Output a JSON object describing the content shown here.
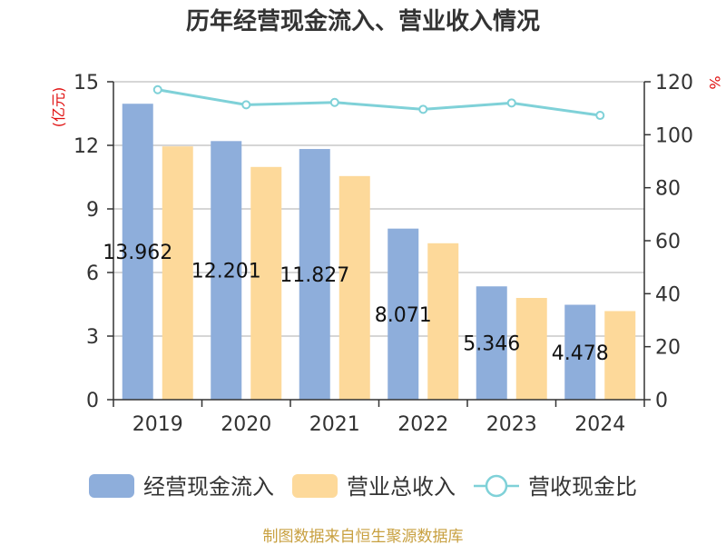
{
  "chart_data": {
    "type": "bar",
    "title": "历年经营现金流入、营业收入情况",
    "categories": [
      "2019",
      "2020",
      "2021",
      "2022",
      "2023",
      "2024"
    ],
    "series": [
      {
        "name": "经营现金流入",
        "kind": "bar",
        "axis": "left",
        "color": "#8eaedb",
        "values": [
          13.962,
          12.201,
          11.827,
          8.071,
          5.346,
          4.478
        ],
        "labels": [
          "13.962",
          "12.201",
          "11.827",
          "8.071",
          "5.346",
          "4.478"
        ]
      },
      {
        "name": "营业总收入",
        "kind": "bar",
        "axis": "left",
        "color": "#fdd99a",
        "values": [
          11.95,
          10.98,
          10.55,
          7.38,
          4.8,
          4.18
        ]
      },
      {
        "name": "营收现金比",
        "kind": "line",
        "axis": "right",
        "color": "#7fd1d8",
        "values": [
          117.0,
          111.3,
          112.2,
          109.6,
          112.0,
          107.3
        ]
      }
    ],
    "left_axis": {
      "label": "(亿元)",
      "ylim": [
        0,
        15
      ],
      "ticks": [
        "0",
        "3",
        "6",
        "9",
        "12",
        "15"
      ]
    },
    "right_axis": {
      "label": "%",
      "ylim": [
        0,
        120
      ],
      "ticks": [
        "0",
        "20",
        "40",
        "60",
        "80",
        "100",
        "120"
      ]
    },
    "grid": true,
    "legend_position": "bottom"
  },
  "source": "制图数据来自恒生聚源数据库"
}
